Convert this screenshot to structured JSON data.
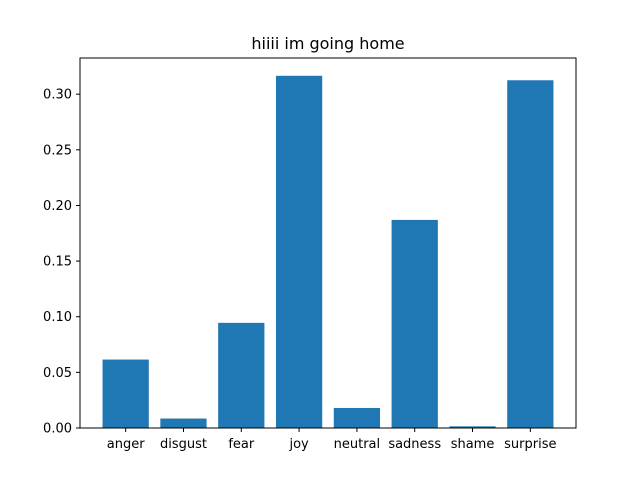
{
  "chart_data": {
    "type": "bar",
    "title": "hiiii im going home",
    "xlabel": "",
    "ylabel": "",
    "categories": [
      "anger",
      "disgust",
      "fear",
      "joy",
      "neutral",
      "sadness",
      "shame",
      "surprise"
    ],
    "values": [
      0.0615,
      0.0085,
      0.0945,
      0.3165,
      0.018,
      0.187,
      0.0015,
      0.3125
    ],
    "ylim": [
      0,
      0.3325
    ],
    "yticks": [
      0.0,
      0.05,
      0.1,
      0.15,
      0.2,
      0.25,
      0.3
    ],
    "ytick_labels": [
      "0.00",
      "0.05",
      "0.10",
      "0.15",
      "0.20",
      "0.25",
      "0.30"
    ],
    "grid": false,
    "bar_color": "#1f77b4"
  }
}
